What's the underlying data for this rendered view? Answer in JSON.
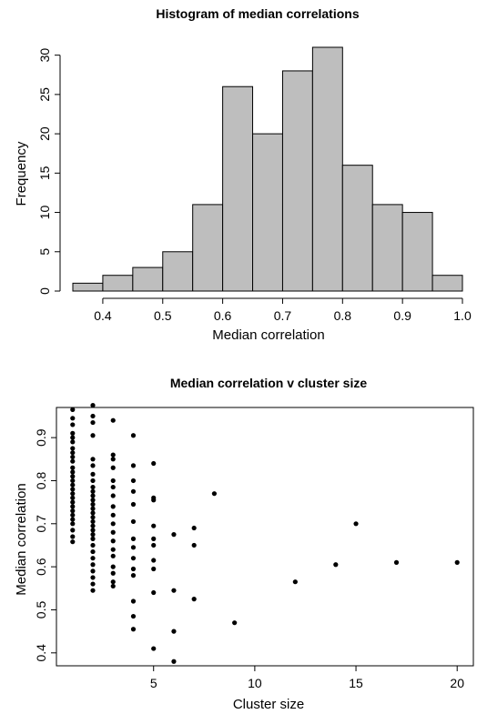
{
  "chart_data": [
    {
      "type": "bar",
      "title": "Histogram of median correlations",
      "xlabel": "Median correlation",
      "ylabel": "Frequency",
      "bin_edges": [
        0.35,
        0.4,
        0.45,
        0.5,
        0.55,
        0.6,
        0.65,
        0.7,
        0.75,
        0.8,
        0.85,
        0.9,
        0.95,
        1.0
      ],
      "values": [
        1,
        2,
        3,
        5,
        11,
        26,
        20,
        28,
        31,
        16,
        11,
        10,
        2
      ],
      "xlim": [
        0.35,
        1.0
      ],
      "ylim": [
        0,
        31
      ],
      "x_ticks": [
        "0.4",
        "0.5",
        "0.6",
        "0.7",
        "0.8",
        "0.9",
        "1.0"
      ],
      "y_ticks": [
        "0",
        "5",
        "10",
        "15",
        "20",
        "25",
        "30"
      ],
      "bar_fill": "#bebebe",
      "grid": false
    },
    {
      "type": "scatter",
      "title": "Median correlation v cluster size",
      "xlabel": "Cluster size",
      "ylabel": "Median correlation",
      "xlim": [
        0.2,
        20.8
      ],
      "ylim": [
        0.37,
        0.97
      ],
      "x_ticks": [
        "5",
        "10",
        "15",
        "20"
      ],
      "y_ticks": [
        "0.4",
        "0.5",
        "0.6",
        "0.7",
        "0.8",
        "0.9"
      ],
      "grid": false,
      "points": [
        [
          1,
          0.965
        ],
        [
          1,
          0.945
        ],
        [
          1,
          0.93
        ],
        [
          1,
          0.91
        ],
        [
          1,
          0.9
        ],
        [
          1,
          0.89
        ],
        [
          1,
          0.875
        ],
        [
          1,
          0.865
        ],
        [
          1,
          0.855
        ],
        [
          1,
          0.845
        ],
        [
          1,
          0.83
        ],
        [
          1,
          0.82
        ],
        [
          1,
          0.81
        ],
        [
          1,
          0.8
        ],
        [
          1,
          0.79
        ],
        [
          1,
          0.78
        ],
        [
          1,
          0.77
        ],
        [
          1,
          0.76
        ],
        [
          1,
          0.75
        ],
        [
          1,
          0.74
        ],
        [
          1,
          0.73
        ],
        [
          1,
          0.72
        ],
        [
          1,
          0.71
        ],
        [
          1,
          0.7
        ],
        [
          1,
          0.685
        ],
        [
          1,
          0.67
        ],
        [
          1,
          0.658
        ],
        [
          2,
          0.975
        ],
        [
          2,
          0.95
        ],
        [
          2,
          0.935
        ],
        [
          2,
          0.905
        ],
        [
          2,
          0.85
        ],
        [
          2,
          0.835
        ],
        [
          2,
          0.815
        ],
        [
          2,
          0.8
        ],
        [
          2,
          0.785
        ],
        [
          2,
          0.775
        ],
        [
          2,
          0.765
        ],
        [
          2,
          0.755
        ],
        [
          2,
          0.745
        ],
        [
          2,
          0.735
        ],
        [
          2,
          0.725
        ],
        [
          2,
          0.715
        ],
        [
          2,
          0.705
        ],
        [
          2,
          0.695
        ],
        [
          2,
          0.685
        ],
        [
          2,
          0.675
        ],
        [
          2,
          0.665
        ],
        [
          2,
          0.65
        ],
        [
          2,
          0.635
        ],
        [
          2,
          0.62
        ],
        [
          2,
          0.605
        ],
        [
          2,
          0.59
        ],
        [
          2,
          0.575
        ],
        [
          2,
          0.56
        ],
        [
          2,
          0.545
        ],
        [
          3,
          0.94
        ],
        [
          3,
          0.86
        ],
        [
          3,
          0.85
        ],
        [
          3,
          0.83
        ],
        [
          3,
          0.8
        ],
        [
          3,
          0.785
        ],
        [
          3,
          0.765
        ],
        [
          3,
          0.74
        ],
        [
          3,
          0.72
        ],
        [
          3,
          0.7
        ],
        [
          3,
          0.68
        ],
        [
          3,
          0.66
        ],
        [
          3,
          0.64
        ],
        [
          3,
          0.625
        ],
        [
          3,
          0.6
        ],
        [
          3,
          0.585
        ],
        [
          3,
          0.565
        ],
        [
          3,
          0.555
        ],
        [
          4,
          0.905
        ],
        [
          4,
          0.835
        ],
        [
          4,
          0.8
        ],
        [
          4,
          0.775
        ],
        [
          4,
          0.745
        ],
        [
          4,
          0.705
        ],
        [
          4,
          0.665
        ],
        [
          4,
          0.645
        ],
        [
          4,
          0.62
        ],
        [
          4,
          0.595
        ],
        [
          4,
          0.58
        ],
        [
          4,
          0.52
        ],
        [
          4,
          0.485
        ],
        [
          4,
          0.455
        ],
        [
          5,
          0.84
        ],
        [
          5,
          0.76
        ],
        [
          5,
          0.755
        ],
        [
          5,
          0.695
        ],
        [
          5,
          0.665
        ],
        [
          5,
          0.65
        ],
        [
          5,
          0.615
        ],
        [
          5,
          0.595
        ],
        [
          5,
          0.54
        ],
        [
          5,
          0.41
        ],
        [
          6,
          0.675
        ],
        [
          6,
          0.545
        ],
        [
          6,
          0.45
        ],
        [
          6,
          0.38
        ],
        [
          7,
          0.69
        ],
        [
          7,
          0.65
        ],
        [
          7,
          0.525
        ],
        [
          8,
          0.77
        ],
        [
          9,
          0.47
        ],
        [
          12,
          0.565
        ],
        [
          14,
          0.605
        ],
        [
          15,
          0.7
        ],
        [
          17,
          0.61
        ],
        [
          20,
          0.61
        ]
      ]
    }
  ]
}
